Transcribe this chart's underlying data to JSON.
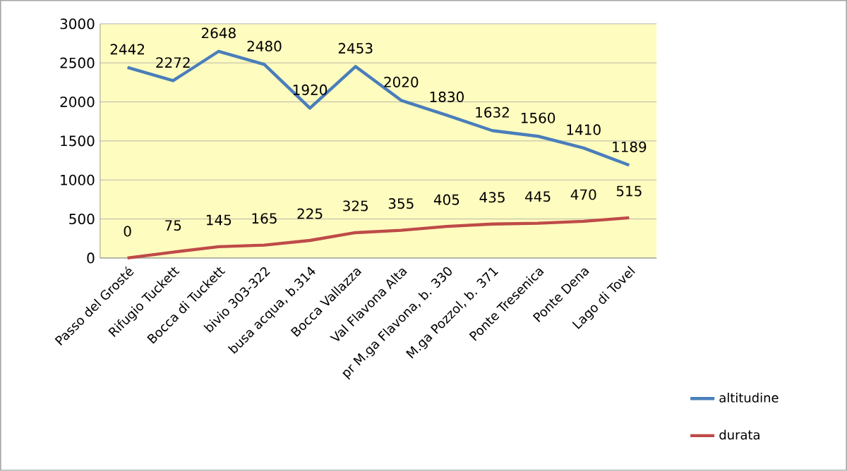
{
  "chart_data": {
    "type": "line",
    "categories": [
      "Passo del Grosté",
      "Rifugio Tuckett",
      "Bocca di Tuckett",
      "bivio 303-322",
      "busa acqua, b.314",
      "Bocca Vallazza",
      "Val Flavona Alta",
      "pr M.ga Flavona, b. 330",
      "M.ga Pozzol, b. 371",
      "Ponte Tresenica",
      "Ponte Dena",
      "Lago di Tovel"
    ],
    "series": [
      {
        "name": "altitudine",
        "color": "#4a7ebb",
        "values": [
          2442,
          2272,
          2648,
          2480,
          1920,
          2453,
          2020,
          1830,
          1632,
          1560,
          1410,
          1189
        ]
      },
      {
        "name": "durata",
        "color": "#be4b48",
        "values": [
          0,
          75,
          145,
          165,
          225,
          325,
          355,
          405,
          435,
          445,
          470,
          515
        ]
      }
    ],
    "ylim": [
      0,
      3000
    ],
    "yticks": [
      0,
      500,
      1000,
      1500,
      2000,
      2500,
      3000
    ],
    "grid": "y",
    "legend": "bottom right",
    "data_labels": true,
    "marker": "none"
  }
}
